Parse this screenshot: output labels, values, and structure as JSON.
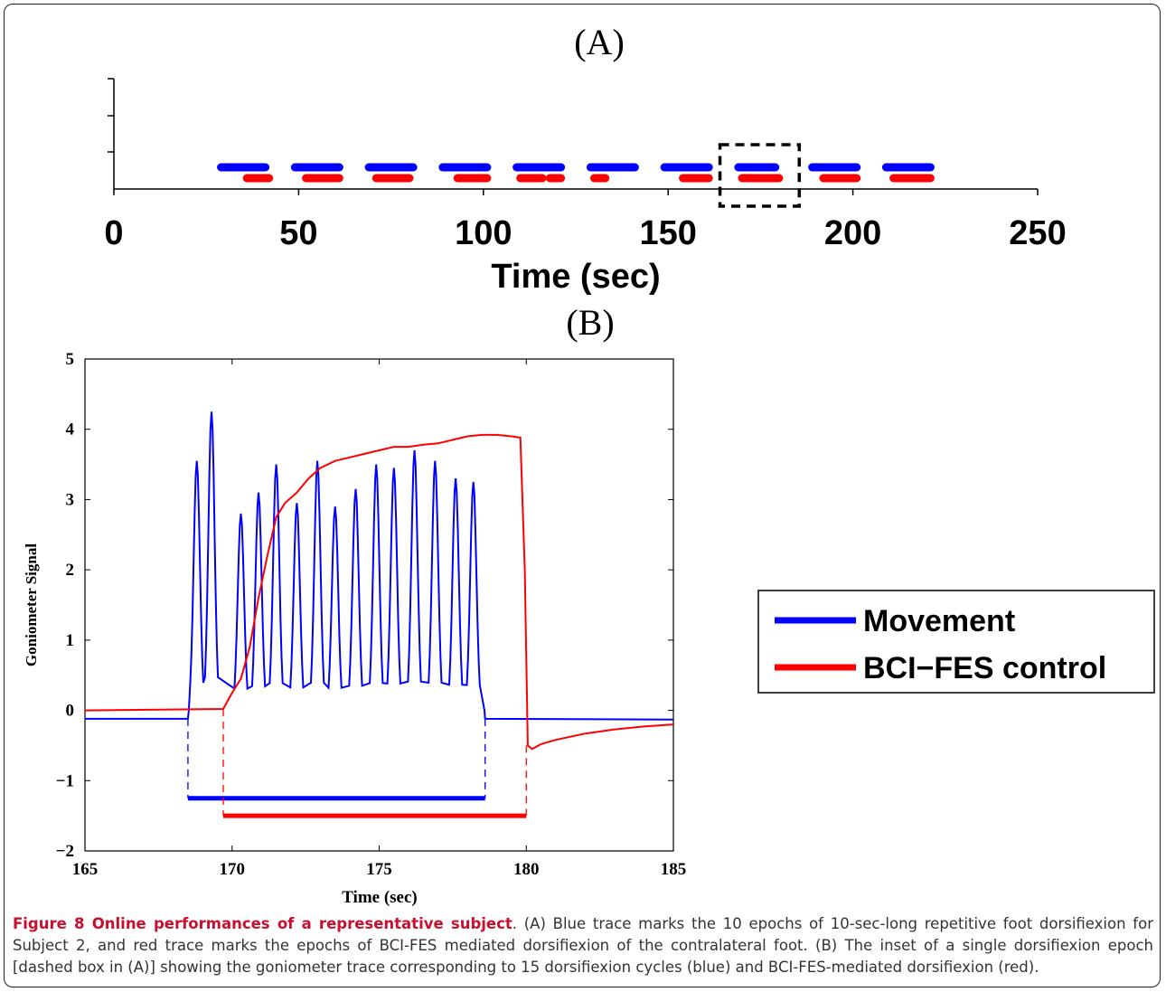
{
  "panel_a": {
    "label": "(A)",
    "xlabel": "Time (sec)",
    "xlim": [
      0,
      250
    ],
    "xticks": [
      0,
      50,
      100,
      150,
      200,
      250
    ],
    "movement_color": "#0000ff",
    "bci_color": "#ff0000",
    "inset_box_range": [
      165,
      185
    ]
  },
  "panel_b": {
    "label": "(B)",
    "ylabel": "Goniometer Signal",
    "xlabel": "Time (sec)",
    "xlim": [
      165,
      185
    ],
    "ylim": [
      -2,
      5
    ],
    "xticks": [
      165,
      170,
      175,
      180,
      185
    ],
    "yticks": [
      -2,
      -1,
      0,
      1,
      2,
      3,
      4,
      5
    ],
    "legend": {
      "movement": "Movement",
      "bci": "BCI−FES control"
    }
  },
  "chart_data": [
    {
      "type": "line",
      "panel": "A",
      "xlabel": "Time (sec)",
      "xlim": [
        0,
        250
      ],
      "series": [
        {
          "name": "Movement",
          "color": "#0000ff",
          "segments": [
            [
              29,
              41
            ],
            [
              49,
              61
            ],
            [
              69,
              81
            ],
            [
              89,
              101
            ],
            [
              109,
              121
            ],
            [
              129,
              141
            ],
            [
              149,
              161
            ],
            [
              169,
              179
            ],
            [
              189,
              201
            ],
            [
              209,
              221
            ]
          ]
        },
        {
          "name": "BCI−FES control",
          "color": "#ff0000",
          "segments": [
            [
              36,
              42
            ],
            [
              52,
              61
            ],
            [
              71,
              80
            ],
            [
              93,
              101
            ],
            [
              110,
              116
            ],
            [
              118,
              121
            ],
            [
              130,
              133
            ],
            [
              154,
              161
            ],
            [
              170,
              180
            ],
            [
              192,
              201
            ],
            [
              211,
              221
            ]
          ]
        }
      ],
      "inset_box": [
        165,
        185
      ]
    },
    {
      "type": "line",
      "panel": "B",
      "xlabel": "Time (sec)",
      "ylabel": "Goniometer Signal",
      "xlim": [
        165,
        185
      ],
      "ylim": [
        -2,
        5
      ],
      "series": [
        {
          "name": "Movement",
          "color": "#0000ff",
          "baseline_before": -0.12,
          "baseline_after": -0.12,
          "onset": 168.5,
          "offset": 178.6,
          "cycle_peaks_x": [
            168.8,
            169.3,
            170.3,
            170.9,
            171.5,
            172.2,
            172.9,
            173.5,
            174.2,
            174.9,
            175.5,
            176.2,
            176.9,
            177.6,
            178.2
          ],
          "cycle_peaks_y": [
            3.55,
            4.25,
            2.8,
            3.1,
            3.5,
            2.95,
            3.55,
            2.9,
            3.15,
            3.5,
            3.45,
            3.7,
            3.55,
            3.3,
            3.25
          ],
          "trough": 0.0,
          "tail_end": -0.13,
          "epoch_bar": {
            "y": -1.25,
            "x": [
              168.5,
              178.6
            ]
          }
        },
        {
          "name": "BCI−FES control",
          "color": "#ff0000",
          "x": [
            165,
            169.7,
            170.0,
            170.3,
            170.6,
            170.9,
            171.2,
            171.5,
            171.8,
            172.2,
            172.6,
            173.0,
            173.5,
            174.0,
            174.5,
            175.0,
            175.5,
            176.0,
            176.5,
            177.0,
            177.5,
            178.0,
            178.5,
            179.0,
            179.5,
            179.8,
            179.95,
            180.05,
            180.2,
            180.5,
            181.0,
            182.0,
            183.0,
            184.0,
            185.0
          ],
          "y": [
            0.0,
            0.02,
            0.25,
            0.45,
            0.9,
            1.6,
            2.2,
            2.75,
            2.95,
            3.1,
            3.3,
            3.45,
            3.55,
            3.6,
            3.65,
            3.7,
            3.75,
            3.75,
            3.78,
            3.8,
            3.85,
            3.9,
            3.92,
            3.92,
            3.9,
            3.88,
            2.0,
            -0.5,
            -0.55,
            -0.48,
            -0.42,
            -0.33,
            -0.27,
            -0.23,
            -0.2
          ],
          "epoch_bar": {
            "y": -1.5,
            "x": [
              169.7,
              180.0
            ]
          }
        }
      ]
    }
  ],
  "caption": {
    "bold": "Figure 8 Online performances of a representative subject",
    "text": ". (A) Blue trace marks the 10 epochs of 10-sec-long repetitive foot dorsifiexion for Subject 2, and red trace marks the epochs of BCI-FES mediated dorsifiexion of the contralateral foot. (B) The inset of a single dorsifiexion epoch [dashed box in (A)] showing the goniometer trace corresponding to 15 dorsifiexion cycles (blue) and BCI-FES-mediated dorsifiexion (red)."
  }
}
